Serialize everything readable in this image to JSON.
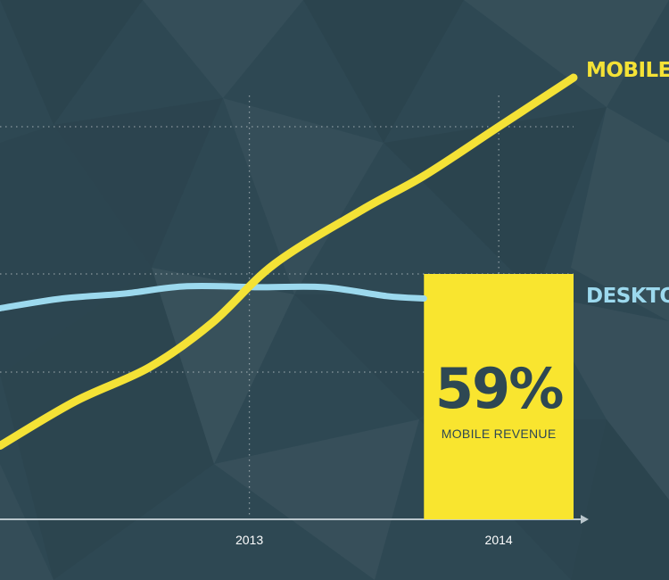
{
  "chart_data": {
    "type": "line",
    "x_ticks": [
      "2013",
      "2014"
    ],
    "series": [
      {
        "name": "MOBILE",
        "color": "#f4e236",
        "values": [
          [
            2012.0,
            15
          ],
          [
            2012.3,
            24
          ],
          [
            2012.6,
            31
          ],
          [
            2012.85,
            40
          ],
          [
            2013.1,
            52
          ],
          [
            2013.45,
            63
          ],
          [
            2013.7,
            70
          ],
          [
            2014.0,
            80
          ],
          [
            2014.3,
            90
          ]
        ]
      },
      {
        "name": "DESKTOP",
        "color": "#9cd9ee",
        "values": [
          [
            2012.0,
            43
          ],
          [
            2012.25,
            45
          ],
          [
            2012.5,
            46
          ],
          [
            2012.75,
            47.5
          ],
          [
            2013.05,
            47.3
          ],
          [
            2013.3,
            47.3
          ],
          [
            2013.55,
            45.5
          ],
          [
            2013.7,
            45
          ]
        ]
      }
    ],
    "xlim": [
      2012.0,
      2014.3
    ],
    "ylim": [
      0,
      90
    ],
    "gridlines_y": [
      30,
      50,
      80
    ],
    "grid": true,
    "callout": {
      "value": "59%",
      "label": "MOBILE REVENUE",
      "background": "#f9e52f",
      "text_color": "#2e4853",
      "x_range": [
        2013.7,
        2014.3
      ],
      "top": 50
    }
  }
}
